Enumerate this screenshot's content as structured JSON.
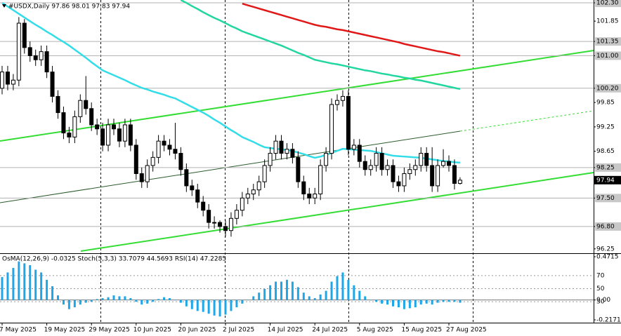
{
  "chart_data": [
    {
      "type": "candlestick",
      "title": "#USDX,Daily  97.86 98.01 97.83 97.94",
      "categories": [
        "7 May 2025",
        null,
        null,
        null,
        null,
        null,
        null,
        null,
        "19 May 2025",
        null,
        null,
        null,
        null,
        null,
        null,
        null,
        "29 May 2025",
        null,
        null,
        null,
        null,
        null,
        null,
        null,
        "10 Jun 2025",
        null,
        null,
        null,
        null,
        null,
        null,
        null,
        "20 Jun 2025",
        null,
        null,
        null,
        null,
        null,
        null,
        null,
        "2 Jul 2025",
        null,
        null,
        null,
        null,
        null,
        null,
        null,
        "14 Jul 2025",
        null,
        null,
        null,
        null,
        null,
        null,
        null,
        "24 Jul 2025",
        null,
        null,
        null,
        null,
        null,
        null,
        null,
        "5 Aug 2025",
        null,
        null,
        null,
        null,
        null,
        null,
        null,
        "15 Aug 2025",
        null,
        null,
        null,
        null,
        null,
        null,
        null,
        "27 Aug 2025",
        null,
        null
      ],
      "open": [
        100.2,
        100.6,
        100.3,
        100.4,
        101.8,
        101.2,
        101.0,
        100.9,
        101.1,
        100.6,
        100.0,
        99.6,
        99.1,
        99.0,
        99.5,
        99.9,
        99.7,
        99.3,
        99.2,
        98.8,
        99.3,
        99.2,
        98.9,
        99.3,
        98.8,
        98.1,
        97.9,
        98.3,
        98.5,
        98.9,
        98.8,
        98.7,
        98.6,
        98.2,
        97.8,
        97.7,
        97.4,
        97.2,
        96.9,
        96.9,
        96.8,
        96.7,
        97.0,
        97.2,
        97.5,
        97.6,
        97.7,
        97.9,
        98.3,
        98.6,
        98.9,
        98.6,
        98.7,
        98.5,
        97.9,
        97.6,
        97.5,
        97.6,
        98.3,
        98.6,
        99.8,
        99.9,
        100.0,
        98.7,
        98.8,
        98.4,
        98.2,
        98.3,
        98.6,
        98.2,
        98.3,
        97.9,
        97.8,
        98.1,
        98.2,
        98.3,
        98.6,
        98.3,
        97.8,
        98.3,
        98.4,
        98.3,
        97.86
      ],
      "high": [
        100.75,
        100.75,
        100.55,
        101.95,
        101.9,
        101.35,
        101.15,
        101.25,
        101.25,
        100.75,
        100.15,
        99.75,
        99.25,
        99.65,
        100.05,
        100.5,
        99.85,
        99.45,
        99.35,
        99.45,
        99.45,
        99.35,
        99.45,
        99.45,
        98.95,
        98.25,
        98.45,
        98.65,
        99.05,
        99.05,
        98.95,
        99.35,
        98.75,
        98.35,
        97.95,
        97.85,
        97.55,
        97.35,
        97.05,
        96.95,
        96.95,
        97.15,
        97.35,
        97.65,
        97.75,
        97.85,
        98.05,
        98.45,
        98.75,
        99.05,
        99.05,
        98.85,
        98.85,
        98.65,
        98.05,
        97.75,
        97.75,
        98.45,
        98.75,
        99.95,
        100.05,
        100.15,
        100.15,
        98.95,
        98.95,
        98.55,
        98.45,
        98.75,
        98.75,
        98.45,
        98.45,
        98.05,
        98.25,
        98.35,
        98.45,
        98.75,
        98.75,
        98.75,
        98.45,
        98.7,
        98.55,
        98.45,
        98.01
      ],
      "low": [
        100.05,
        100.15,
        100.15,
        100.25,
        101.05,
        100.85,
        100.75,
        100.75,
        100.45,
        99.85,
        99.45,
        98.95,
        98.85,
        98.85,
        99.35,
        99.55,
        99.15,
        99.05,
        98.65,
        98.65,
        99.05,
        98.75,
        98.75,
        98.65,
        97.95,
        97.75,
        97.75,
        98.15,
        98.35,
        98.65,
        98.55,
        98.45,
        98.05,
        97.65,
        97.55,
        97.25,
        97.05,
        96.75,
        96.75,
        96.65,
        96.55,
        96.55,
        96.85,
        97.05,
        97.35,
        97.45,
        97.55,
        97.75,
        98.15,
        98.45,
        98.45,
        98.45,
        98.35,
        97.75,
        97.45,
        97.35,
        97.35,
        97.45,
        98.15,
        98.45,
        99.65,
        99.75,
        98.55,
        98.55,
        98.25,
        98.05,
        98.05,
        98.15,
        98.05,
        98.05,
        97.75,
        97.65,
        97.65,
        97.95,
        98.05,
        98.15,
        98.15,
        97.65,
        97.65,
        98.25,
        98.15,
        97.71,
        97.83
      ],
      "close": [
        100.6,
        100.3,
        100.4,
        101.8,
        101.2,
        101.0,
        100.9,
        101.1,
        100.6,
        100.0,
        99.6,
        99.1,
        99.0,
        99.5,
        99.9,
        99.7,
        99.3,
        99.2,
        98.8,
        99.3,
        99.2,
        98.9,
        99.3,
        98.8,
        98.1,
        97.9,
        98.3,
        98.5,
        98.9,
        98.8,
        98.7,
        98.6,
        98.2,
        97.8,
        97.7,
        97.4,
        97.2,
        96.9,
        96.9,
        96.8,
        96.7,
        97.0,
        97.2,
        97.5,
        97.6,
        97.7,
        97.9,
        98.3,
        98.6,
        98.9,
        98.6,
        98.7,
        98.5,
        97.9,
        97.6,
        97.5,
        97.6,
        98.3,
        98.6,
        99.8,
        99.9,
        100.0,
        98.7,
        98.8,
        98.4,
        98.2,
        98.3,
        98.6,
        98.2,
        98.3,
        97.9,
        97.8,
        98.1,
        98.2,
        98.3,
        98.6,
        98.3,
        97.8,
        98.3,
        98.4,
        98.3,
        97.86,
        97.94
      ],
      "series": [
        {
          "color": "#33dde8",
          "values": [
            102.3,
            102.21,
            102.12,
            102.03,
            101.94,
            101.85,
            101.76,
            101.68,
            101.59,
            101.51,
            101.42,
            101.34,
            101.25,
            101.15,
            101.05,
            100.95,
            100.84,
            100.74,
            100.64,
            100.58,
            100.52,
            100.46,
            100.4,
            100.33,
            100.27,
            100.21,
            100.17,
            100.12,
            100.08,
            100.04,
            99.99,
            99.95,
            99.88,
            99.81,
            99.74,
            99.67,
            99.6,
            99.52,
            99.43,
            99.35,
            99.26,
            99.17,
            99.09,
            99.0,
            98.94,
            98.88,
            98.81,
            98.75,
            98.73,
            98.71,
            98.7,
            98.68,
            98.66,
            98.62,
            98.58,
            98.53,
            98.49,
            98.52,
            98.56,
            98.61,
            98.66,
            98.71,
            98.7,
            98.69,
            98.68,
            98.67,
            98.66,
            98.63,
            98.6,
            98.57,
            98.54,
            98.53,
            98.52,
            98.51,
            98.5,
            98.49,
            98.47,
            98.45,
            98.43,
            98.41,
            98.4,
            98.38,
            98.37
          ]
        },
        {
          "color": "#22d6a0",
          "values": [
            null,
            null,
            null,
            null,
            null,
            null,
            null,
            null,
            null,
            null,
            null,
            null,
            null,
            null,
            null,
            null,
            null,
            null,
            null,
            null,
            null,
            null,
            null,
            null,
            null,
            null,
            null,
            null,
            null,
            null,
            null,
            null,
            102.37,
            102.3,
            102.22,
            102.15,
            102.07,
            102.0,
            101.93,
            101.87,
            101.8,
            101.73,
            101.67,
            101.6,
            101.55,
            101.5,
            101.45,
            101.4,
            101.35,
            101.3,
            101.25,
            101.19,
            101.13,
            101.07,
            101.02,
            100.96,
            100.9,
            100.87,
            100.84,
            100.81,
            100.79,
            100.76,
            100.73,
            100.7,
            100.67,
            100.64,
            100.62,
            100.59,
            100.56,
            100.54,
            100.51,
            100.49,
            100.46,
            100.44,
            100.41,
            100.39,
            100.36,
            100.33,
            100.3,
            100.27,
            100.24,
            100.21,
            100.18
          ]
        },
        {
          "color": "#e01818",
          "values": [
            null,
            null,
            null,
            null,
            null,
            null,
            null,
            null,
            null,
            null,
            null,
            null,
            null,
            null,
            null,
            null,
            null,
            null,
            null,
            null,
            null,
            null,
            null,
            null,
            null,
            null,
            null,
            null,
            null,
            null,
            null,
            null,
            null,
            null,
            null,
            null,
            null,
            null,
            null,
            null,
            null,
            null,
            null,
            102.28,
            102.24,
            102.2,
            102.16,
            102.12,
            102.08,
            102.04,
            102.0,
            101.96,
            101.92,
            101.88,
            101.84,
            101.8,
            101.76,
            101.73,
            101.71,
            101.68,
            101.65,
            101.63,
            101.6,
            101.57,
            101.54,
            101.51,
            101.48,
            101.45,
            101.42,
            101.39,
            101.36,
            101.33,
            101.29,
            101.26,
            101.23,
            101.2,
            101.17,
            101.14,
            101.11,
            101.09,
            101.06,
            101.03,
            101.0
          ]
        }
      ],
      "up_color": "#ffffff",
      "down_color": "#000000",
      "ylim": [
        96.16,
        102.37
      ],
      "yticks": [
        {
          "value": 102.3,
          "label": "102.30"
        },
        101.85,
        101.35,
        {
          "value": 101.0,
          "label": "101.00"
        },
        {
          "value": 100.2,
          "label": "100.20"
        },
        99.85,
        99.25,
        98.65,
        98.25,
        {
          "value": 97.5,
          "label": "97.50"
        },
        {
          "value": 96.8,
          "label": "96.80"
        },
        96.25
      ],
      "hlines": [
        102.3,
        101.35,
        101.0,
        100.2,
        98.25,
        97.5,
        96.8
      ]
    },
    {
      "type": "bar",
      "title": "OsMA(12,26,9) -0.0325  Stoch(5,3,3) 33.7079 44.5693  RSI(14) 47.2285",
      "color": "#1ea7e8",
      "values": [
        0.25,
        0.3,
        0.35,
        0.42,
        0.4,
        0.38,
        0.33,
        0.3,
        0.22,
        0.15,
        0.05,
        -0.05,
        -0.1,
        -0.08,
        -0.05,
        -0.03,
        -0.02,
        0.01,
        0.02,
        0.03,
        0.05,
        0.04,
        0.04,
        0.02,
        -0.02,
        -0.05,
        -0.04,
        -0.02,
        0.01,
        0.03,
        0.02,
        0.0,
        -0.03,
        -0.07,
        -0.1,
        -0.12,
        -0.13,
        -0.15,
        -0.17,
        -0.18,
        -0.16,
        -0.12,
        -0.08,
        -0.04,
        0.0,
        0.04,
        0.08,
        0.12,
        0.16,
        0.2,
        0.2,
        0.22,
        0.2,
        0.14,
        0.08,
        0.04,
        0.02,
        0.06,
        0.1,
        0.2,
        0.26,
        0.3,
        0.22,
        0.16,
        0.1,
        0.04,
        0.0,
        -0.02,
        -0.04,
        -0.05,
        -0.07,
        -0.08,
        -0.1,
        -0.09,
        -0.08,
        -0.05,
        -0.04,
        -0.05,
        -0.03,
        -0.02,
        -0.02,
        -0.02,
        -0.03
      ],
      "ylim": [
        -0.2171,
        0.4715
      ],
      "yticks": [
        0.4715,
        {
          "value": 0,
          "label": "0.00"
        },
        -0.2171
      ],
      "y2lim": [
        0,
        100
      ],
      "y2ticks": [
        70,
        50,
        30
      ]
    }
  ]
}
